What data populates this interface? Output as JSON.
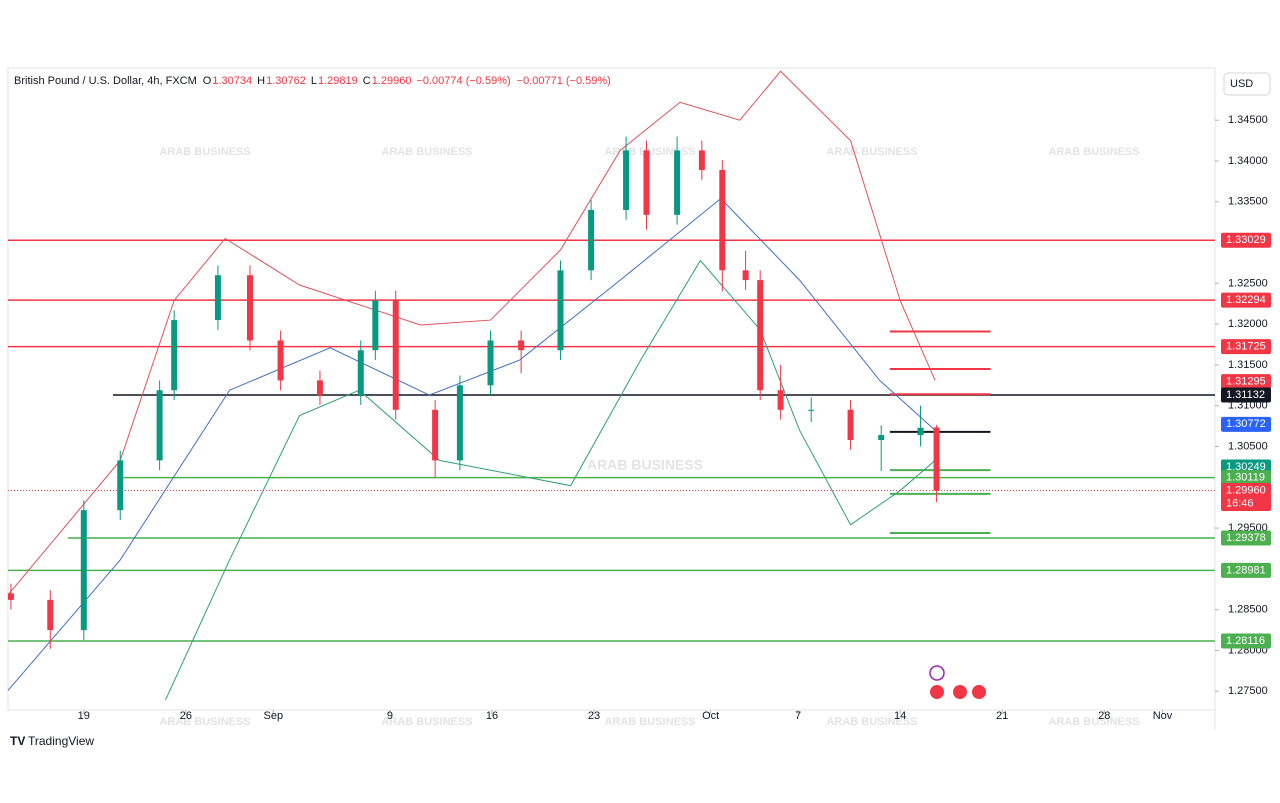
{
  "chart_data": {
    "type": "candlestick",
    "title": "British Pound / U.S. Dollar, 4h, FXCM",
    "ohlc_text": [
      {
        "key": "O",
        "value": "1.30734"
      },
      {
        "key": "H",
        "value": "1.30762"
      },
      {
        "key": "L",
        "value": "1.29819"
      },
      {
        "key": "C",
        "value": "1.29960"
      }
    ],
    "change_text": [
      "−0.00774 (−0.59%)",
      "−0.00771 (−0.59%)"
    ],
    "currency": "USD",
    "brand": "TradingView",
    "watermark": "ARAB BUSINESS",
    "up_color": "#089981",
    "down_color": "#f23645",
    "x": [
      -5,
      -2.3,
      0,
      2.5,
      5.2,
      6.2,
      9.2,
      11.4,
      13.5,
      16.2,
      19,
      20,
      21.4,
      24.1,
      25.8,
      27.9,
      30,
      32.7,
      34.8,
      37.2,
      38.6,
      40.7,
      42.4,
      43.8,
      45.4,
      46.4,
      47.8,
      49.9,
      52.6,
      54.7,
      57.4,
      58.5
    ],
    "open": [
      1.287,
      1.2862,
      1.2825,
      1.2972,
      1.3033,
      1.3119,
      1.3205,
      1.326,
      1.318,
      1.3131,
      1.3113,
      1.3168,
      1.3229,
      1.3095,
      1.3033,
      1.3125,
      1.318,
      1.3168,
      1.3266,
      1.334,
      1.3413,
      1.3334,
      1.3413,
      1.3389,
      1.3266,
      1.3254,
      1.3119,
      1.3095,
      1.3095,
      1.3058,
      1.3064,
      1.30734
    ],
    "high": [
      1.2882,
      1.2874,
      1.2984,
      1.3045,
      1.3131,
      1.3217,
      1.3272,
      1.3272,
      1.3192,
      1.3143,
      1.318,
      1.3241,
      1.3241,
      1.3107,
      1.3137,
      1.3192,
      1.3192,
      1.3278,
      1.3352,
      1.343,
      1.3425,
      1.343,
      1.3425,
      1.3401,
      1.329,
      1.3266,
      1.315,
      1.311,
      1.3107,
      1.3076,
      1.31,
      1.30762
    ],
    "low": [
      1.285,
      1.2802,
      1.2813,
      1.296,
      1.3021,
      1.3107,
      1.3193,
      1.3168,
      1.3119,
      1.3101,
      1.3101,
      1.3156,
      1.3083,
      1.3012,
      1.3021,
      1.3113,
      1.314,
      1.3156,
      1.3254,
      1.3328,
      1.3316,
      1.3322,
      1.3377,
      1.324,
      1.3242,
      1.3107,
      1.3083,
      1.308,
      1.3046,
      1.302,
      1.305,
      1.29819
    ],
    "close": [
      1.2862,
      1.2825,
      1.2972,
      1.3033,
      1.3119,
      1.3205,
      1.326,
      1.318,
      1.3131,
      1.3113,
      1.3168,
      1.3229,
      1.3095,
      1.3033,
      1.3125,
      1.318,
      1.3168,
      1.3266,
      1.334,
      1.3413,
      1.3334,
      1.3413,
      1.3389,
      1.3266,
      1.3254,
      1.3119,
      1.3095,
      1.3095,
      1.3058,
      1.3064,
      1.3073,
      1.2996
    ],
    "bands": [
      {
        "color": "#e0505a",
        "x": [
          -5.2,
          2.5,
          6.2,
          9.7,
          14.8,
          23.1,
          27.9,
          32.7,
          36.8,
          40.9,
          45.0,
          47.8,
          52.6,
          56.0,
          58.4
        ],
        "values": [
          1.2868,
          1.3033,
          1.3229,
          1.3305,
          1.3248,
          1.3199,
          1.3205,
          1.3291,
          1.3413,
          1.3472,
          1.345,
          1.351,
          1.3425,
          1.3229,
          1.3131
        ]
      },
      {
        "color": "#3f6fc4",
        "x": [
          -5.2,
          2.5,
          10.0,
          16.9,
          23.7,
          29.9,
          36.8,
          43.7,
          49.1,
          54.6,
          58.4
        ],
        "values": [
          1.2751,
          1.2911,
          1.3119,
          1.3171,
          1.3113,
          1.3156,
          1.3254,
          1.3354,
          1.3254,
          1.3131,
          1.307
        ]
      },
      {
        "color": "#2e9e7a",
        "x": [
          5.6,
          10.0,
          14.8,
          18.9,
          24.4,
          33.4,
          38.2,
          42.3,
          46.4,
          49.1,
          52.6,
          56.0,
          58.4
        ],
        "values": [
          1.2739,
          1.2911,
          1.3088,
          1.3119,
          1.3033,
          1.3002,
          1.3156,
          1.3278,
          1.3193,
          1.307,
          1.2954,
          1.2996,
          1.3033
        ]
      }
    ],
    "levels": [
      {
        "value": 1.33029,
        "color": "#f23645",
        "x_from": -5.2
      },
      {
        "value": 1.32294,
        "color": "#f23645",
        "x_from": -5.2
      },
      {
        "value": 1.31725,
        "color": "#f23645",
        "x_from": -5.2
      },
      {
        "value": 1.31132,
        "color": "#131722",
        "x_from": 2
      },
      {
        "value": 1.30119,
        "color": "#4caf50",
        "x_from": 2.7
      },
      {
        "value": 1.29378,
        "color": "#4caf50",
        "x_from": -1.1
      },
      {
        "value": 1.28981,
        "color": "#4caf50",
        "x_from": -5.2
      },
      {
        "value": 1.28116,
        "color": "#4caf50",
        "x_from": -5.2
      }
    ],
    "short_levels": [
      {
        "value": 1.3191,
        "color": "#f23645"
      },
      {
        "value": 1.3145,
        "color": "#f23645"
      },
      {
        "value": 1.3114,
        "color": "#f23645"
      },
      {
        "value": 1.3068,
        "color": "#131722"
      },
      {
        "value": 1.3021,
        "color": "#4caf50"
      },
      {
        "value": 1.2992,
        "color": "#4caf50"
      },
      {
        "value": 1.2944,
        "color": "#4caf50"
      }
    ],
    "short_x": [
      55.3,
      62.2
    ],
    "axis_badges": [
      {
        "value": 1.33029,
        "label": "1.33029",
        "color": "#f23645"
      },
      {
        "value": 1.32294,
        "label": "1.32294",
        "color": "#f23645"
      },
      {
        "value": 1.31725,
        "label": "1.31725",
        "color": "#f23645"
      },
      {
        "value": 1.31295,
        "label": "1.31295",
        "color": "#f23645"
      },
      {
        "value": 1.31132,
        "label": "1.31132",
        "color": "#131722"
      },
      {
        "value": 1.30772,
        "label": "1.30772",
        "color": "#2962ff"
      },
      {
        "value": 1.30249,
        "label": "1.30249",
        "color": "#089981"
      },
      {
        "value": 1.30119,
        "label": "1.30119",
        "color": "#4caf50"
      },
      {
        "value": 1.2996,
        "label": "1.29960",
        "color": "#f23645",
        "countdown": "16:46"
      },
      {
        "value": 1.29378,
        "label": "1.29378",
        "color": "#4caf50"
      },
      {
        "value": 1.28981,
        "label": "1.28981",
        "color": "#4caf50"
      },
      {
        "value": 1.28116,
        "label": "1.28116",
        "color": "#4caf50"
      }
    ],
    "ylim": [
      1.2727,
      1.3514
    ],
    "yticks": [
      {
        "value": 1.275,
        "label": "1.27500"
      },
      {
        "value": 1.28,
        "label": "1.28000"
      },
      {
        "value": 1.285,
        "label": "1.28500"
      },
      {
        "value": 1.295,
        "label": "1.29500"
      },
      {
        "value": 1.305,
        "label": "1.30500"
      },
      {
        "value": 1.31,
        "label": "1.31000"
      },
      {
        "value": 1.315,
        "label": "1.31500"
      },
      {
        "value": 1.32,
        "label": "1.32000"
      },
      {
        "value": 1.325,
        "label": "1.32500"
      },
      {
        "value": 1.335,
        "label": "1.33500"
      },
      {
        "value": 1.34,
        "label": "1.34000"
      },
      {
        "value": 1.345,
        "label": "1.34500"
      }
    ],
    "xlim": [
      -5.2,
      77.6
    ],
    "xticks": [
      {
        "value": 0,
        "label": "19"
      },
      {
        "value": 7,
        "label": "26"
      },
      {
        "value": 13,
        "label": "Sep"
      },
      {
        "value": 21,
        "label": "9"
      },
      {
        "value": 28,
        "label": "16"
      },
      {
        "value": 35,
        "label": "23"
      },
      {
        "value": 43,
        "label": "Oct"
      },
      {
        "value": 49,
        "label": "7"
      },
      {
        "value": 56,
        "label": "14"
      },
      {
        "value": 63,
        "label": "21"
      },
      {
        "value": 70,
        "label": "28"
      },
      {
        "value": 74,
        "label": "Nov"
      }
    ]
  }
}
